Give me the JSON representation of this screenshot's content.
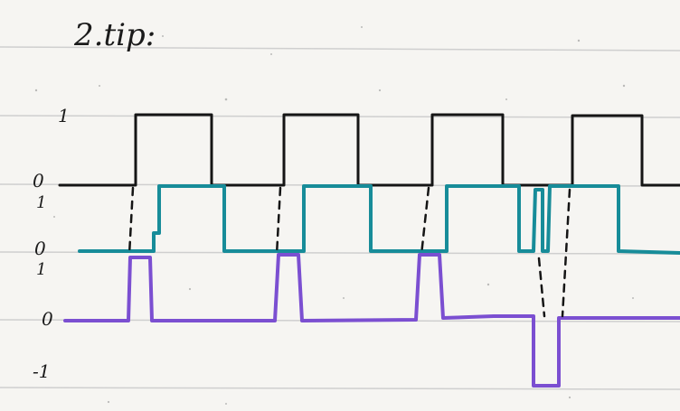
{
  "title": "2.tip:",
  "labels": {
    "row1_high": "1",
    "row1_low": "0",
    "row2_high": "1",
    "row2_low": "0",
    "row3_high": "1",
    "row3_low": "0",
    "row3_neg": "-1"
  },
  "colors": {
    "paper": "#f6f5f2",
    "ruled_line": "#cfcfcf",
    "signal_1": "#151515",
    "signal_2": "#178c99",
    "signal_3": "#7b4fd1",
    "dashed_guide": "#151515"
  },
  "chart_data": {
    "type": "line",
    "title": "2.tip:",
    "x_units": "time (hand-drawn)",
    "series": [
      {
        "name": "",
        "values_kind": "square wave",
        "levels": [
          0,
          1
        ],
        "pulses": 4
      },
      {
        "name": "",
        "values_kind": "delayed square wave",
        "levels": [
          0,
          1
        ],
        "pulses": 4
      },
      {
        "name": "",
        "values_kind": "difference pulses",
        "levels": [
          -1,
          0,
          1
        ],
        "positive_pulses": 3,
        "negative_pulses": 1
      }
    ]
  }
}
